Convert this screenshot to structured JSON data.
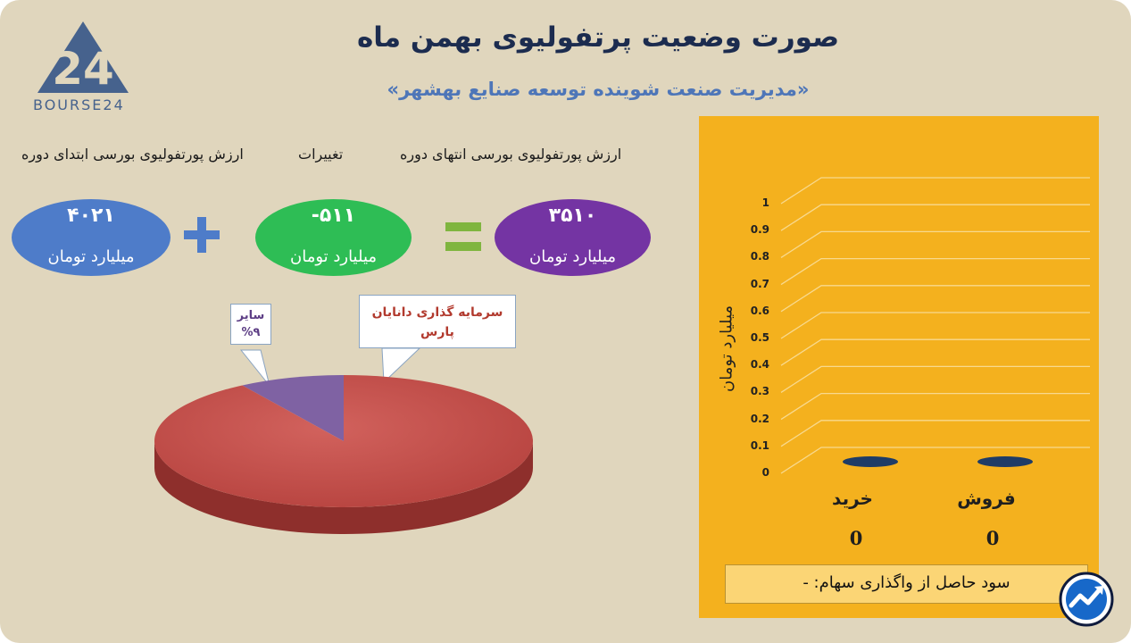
{
  "header": {
    "title": "صورت وضعیت پرتفولیوی بهمن ماه",
    "subtitle": "«مدیریت صنعت شوینده توسعه صنایع بهشهر»",
    "logo_text": "BOURSE24"
  },
  "summary": {
    "start_label": "ارزش پورتفولیوی بورسی ابتدای دوره",
    "change_label": "تغییرات",
    "end_label": "ارزش پورتفولیوی بورسی انتهای دوره",
    "start_value": "۴۰۲۱",
    "change_value": "-۵۱۱",
    "end_value": "۳۵۱۰",
    "unit": "میلیارد تومان",
    "colors": {
      "start": "#4e7cc9",
      "change": "#2ebd55",
      "end": "#7434a3",
      "plus": "#4e7cc9",
      "equals": "#7fb53f"
    }
  },
  "pie": {
    "callout_main": "سرمایه گذاری دانایان پارس",
    "callout_other_name": "سایر",
    "callout_other_value": "%۹"
  },
  "bar": {
    "ylabel": "میلیارد تومان",
    "yticks": [
      "0",
      "0.1",
      "0.2",
      "0.3",
      "0.4",
      "0.5",
      "0.6",
      "0.7",
      "0.8",
      "0.9",
      "1"
    ],
    "categories": [
      "خرید",
      "فروش"
    ],
    "values_text": [
      "0",
      "0"
    ],
    "profit_text": "سود حاصل از واگذاری سهام: -"
  },
  "chart_data": [
    {
      "type": "pie",
      "categories": [
        "سرمایه گذاری دانایان پارس",
        "سایر"
      ],
      "values": [
        91,
        9
      ],
      "colors": [
        "#c14a47",
        "#7f62a3"
      ]
    },
    {
      "type": "bar",
      "categories": [
        "خرید",
        "فروش"
      ],
      "values": [
        0,
        0
      ],
      "ylabel": "میلیارد تومان",
      "ylim": [
        0,
        1
      ],
      "grid": true,
      "color": "#1f3c66"
    }
  ]
}
